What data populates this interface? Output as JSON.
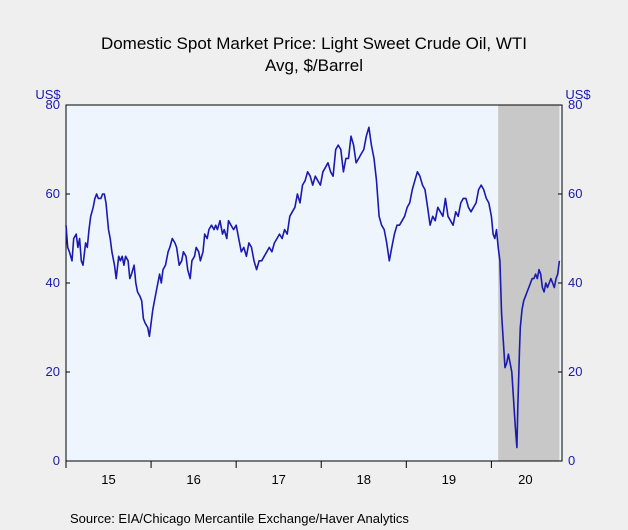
{
  "chart_data": {
    "type": "line",
    "title": "Domestic Spot Market Price: Light Sweet Crude Oil, WTI",
    "subtitle": "Avg, $/Barrel",
    "left_unit": "US$",
    "right_unit": "US$",
    "source": "Source:  EIA/Chicago Mercantile Exchange/Haver Analytics",
    "ylim": [
      0,
      80
    ],
    "y_ticks": [
      0,
      20,
      40,
      60,
      80
    ],
    "xlim": [
      2015.0,
      2020.83
    ],
    "x_tick_labels": [
      {
        "label": "15",
        "pos": 2015.5
      },
      {
        "label": "16",
        "pos": 2016.5
      },
      {
        "label": "17",
        "pos": 2017.5
      },
      {
        "label": "18",
        "pos": 2018.5
      },
      {
        "label": "19",
        "pos": 2019.5
      },
      {
        "label": "20",
        "pos": 2020.4
      }
    ],
    "recession_shading": [
      2020.08,
      2020.8
    ],
    "colors": {
      "line": "#1a1ab0",
      "plot_bg": "#eef5fd",
      "shade": "#c8c8c8",
      "axis_text": "#1a1aa8"
    },
    "series": [
      {
        "x": [
          2015.0,
          2015.02,
          2015.04,
          2015.07,
          2015.09,
          2015.12,
          2015.14,
          2015.16,
          2015.18,
          2015.2,
          2015.23,
          2015.25,
          2015.27,
          2015.29,
          2015.32,
          2015.34,
          2015.36,
          2015.38,
          2015.41,
          2015.43,
          2015.45,
          2015.47,
          2015.5,
          2015.52,
          2015.54,
          2015.57,
          2015.59,
          2015.62,
          2015.64,
          2015.66,
          2015.68,
          2015.7,
          2015.73,
          2015.75,
          2015.77,
          2015.8,
          2015.82,
          2015.84,
          2015.87,
          2015.89,
          2015.91,
          2015.93,
          2015.96,
          2015.98,
          2016.0,
          2016.02,
          2016.05,
          2016.07,
          2016.1,
          2016.12,
          2016.14,
          2016.17,
          2016.2,
          2016.22,
          2016.25,
          2016.28,
          2016.3,
          2016.33,
          2016.36,
          2016.38,
          2016.41,
          2016.43,
          2016.46,
          2016.48,
          2016.51,
          2016.53,
          2016.56,
          2016.58,
          2016.61,
          2016.63,
          2016.66,
          2016.68,
          2016.71,
          2016.74,
          2016.76,
          2016.78,
          2016.81,
          2016.84,
          2016.86,
          2016.89,
          2016.91,
          2016.94,
          2016.97,
          2017.0,
          2017.03,
          2017.06,
          2017.09,
          2017.12,
          2017.15,
          2017.18,
          2017.21,
          2017.24,
          2017.27,
          2017.3,
          2017.33,
          2017.36,
          2017.39,
          2017.42,
          2017.45,
          2017.48,
          2017.51,
          2017.54,
          2017.57,
          2017.6,
          2017.63,
          2017.66,
          2017.69,
          2017.72,
          2017.75,
          2017.78,
          2017.81,
          2017.84,
          2017.87,
          2017.9,
          2017.93,
          2017.96,
          2017.99,
          2018.02,
          2018.05,
          2018.08,
          2018.11,
          2018.14,
          2018.17,
          2018.2,
          2018.23,
          2018.26,
          2018.29,
          2018.32,
          2018.35,
          2018.38,
          2018.41,
          2018.44,
          2018.47,
          2018.5,
          2018.53,
          2018.56,
          2018.59,
          2018.62,
          2018.65,
          2018.68,
          2018.71,
          2018.74,
          2018.77,
          2018.8,
          2018.83,
          2018.86,
          2018.89,
          2018.92,
          2018.95,
          2018.98,
          2019.01,
          2019.04,
          2019.07,
          2019.1,
          2019.13,
          2019.16,
          2019.19,
          2019.22,
          2019.25,
          2019.28,
          2019.31,
          2019.34,
          2019.37,
          2019.4,
          2019.43,
          2019.46,
          2019.49,
          2019.52,
          2019.55,
          2019.58,
          2019.61,
          2019.64,
          2019.67,
          2019.7,
          2019.73,
          2019.76,
          2019.79,
          2019.82,
          2019.85,
          2019.88,
          2019.91,
          2019.94,
          2019.97,
          2020.0,
          2020.02,
          2020.04,
          2020.06,
          2020.08,
          2020.1,
          2020.12,
          2020.14,
          2020.16,
          2020.18,
          2020.2,
          2020.22,
          2020.24,
          2020.26,
          2020.28,
          2020.3,
          2020.31,
          2020.32,
          2020.33,
          2020.34,
          2020.36,
          2020.38,
          2020.4,
          2020.42,
          2020.44,
          2020.46,
          2020.48,
          2020.5,
          2020.52,
          2020.54,
          2020.56,
          2020.58,
          2020.6,
          2020.62,
          2020.64,
          2020.66,
          2020.68,
          2020.7,
          2020.72,
          2020.74,
          2020.76,
          2020.78,
          2020.8
        ],
        "y": [
          53,
          48,
          47,
          45,
          50,
          51,
          48,
          50,
          45,
          44,
          49,
          48,
          52,
          55,
          57,
          59,
          60,
          59,
          59,
          60,
          60,
          58,
          52,
          50,
          47,
          44,
          41,
          46,
          45,
          46,
          44,
          46,
          45,
          41,
          42,
          44,
          40,
          38,
          37,
          36,
          32,
          31,
          30,
          28,
          31,
          34,
          37,
          39,
          42,
          40,
          43,
          44,
          47,
          48,
          50,
          49,
          48,
          44,
          45,
          47,
          46,
          43,
          41,
          45,
          46,
          48,
          47,
          45,
          47,
          51,
          50,
          52,
          53,
          52,
          53,
          52,
          54,
          51,
          52,
          50,
          54,
          53,
          52,
          53,
          50,
          47,
          48,
          46,
          49,
          48,
          45,
          43,
          45,
          45,
          46,
          47,
          48,
          47,
          49,
          50,
          51,
          50,
          52,
          51,
          55,
          56,
          57,
          60,
          58,
          62,
          63,
          65,
          64,
          62,
          64,
          63,
          62,
          65,
          66,
          67,
          65,
          64,
          70,
          71,
          70,
          65,
          68,
          68,
          73,
          71,
          67,
          68,
          69,
          70,
          73,
          75,
          71,
          68,
          63,
          55,
          53,
          52,
          49,
          45,
          48,
          51,
          53,
          53,
          54,
          55,
          57,
          58,
          61,
          63,
          65,
          64,
          62,
          61,
          57,
          53,
          55,
          54,
          57,
          56,
          55,
          59,
          55,
          54,
          53,
          56,
          55,
          58,
          59,
          59,
          57,
          56,
          57,
          58,
          61,
          62,
          61,
          59,
          58,
          55,
          51,
          50,
          52,
          48,
          45,
          33,
          27,
          21,
          22,
          24,
          22,
          20,
          14,
          8,
          3,
          12,
          18,
          25,
          30,
          34,
          36,
          37,
          38,
          39,
          40,
          41,
          41,
          42,
          41,
          43,
          42,
          39,
          38,
          40,
          39,
          40,
          41,
          40,
          39,
          41,
          42,
          45
        ]
      }
    ]
  }
}
